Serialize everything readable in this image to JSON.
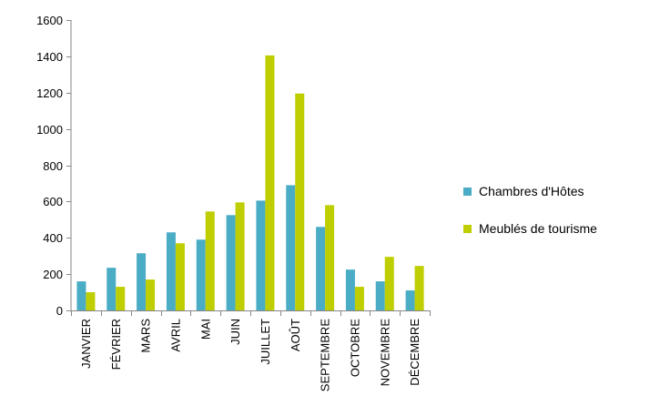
{
  "chart_data": {
    "type": "bar",
    "title": "",
    "xlabel": "",
    "ylabel": "",
    "ylim": [
      0,
      1600
    ],
    "ytick_step": 200,
    "yticks": [
      "0",
      "200",
      "400",
      "600",
      "800",
      "1000",
      "1200",
      "1400",
      "1600"
    ],
    "grid": false,
    "legend_position": "right",
    "categories": [
      "JANVIER",
      "FÉVRIER",
      "MARS",
      "AVRIL",
      "MAI",
      "JUIN",
      "JUILLET",
      "AOÛT",
      "SEPTEMBRE",
      "OCTOBRE",
      "NOVEMBRE",
      "DÉCEMBRE"
    ],
    "series": [
      {
        "name": "Chambres d'Hôtes",
        "color": "#4BACC6",
        "values": [
          160,
          235,
          315,
          430,
          390,
          525,
          605,
          690,
          460,
          225,
          160,
          110
        ]
      },
      {
        "name": "Meublés de tourisme",
        "color": "#BFCE00",
        "values": [
          100,
          130,
          170,
          370,
          545,
          595,
          1405,
          1195,
          580,
          130,
          295,
          245
        ]
      }
    ]
  }
}
